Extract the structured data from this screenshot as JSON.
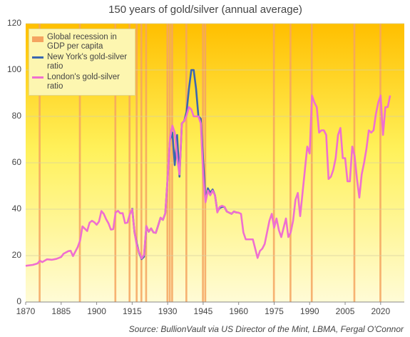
{
  "chart_data": {
    "type": "line",
    "title": "150 years of gold/silver (annual  average)",
    "source": "Source: BullionVault via US Director of the Mint, LBMA, Fergal O'Connor",
    "xlim": [
      1870,
      2030
    ],
    "xticks": [
      1870,
      1885,
      1900,
      1915,
      1930,
      1945,
      1960,
      1975,
      1990,
      2005,
      2020
    ],
    "ylim": [
      0,
      120
    ],
    "yticks": [
      0,
      20,
      40,
      60,
      80,
      100,
      120
    ],
    "grid": true,
    "recession": {
      "name": "Global recession in GDP per capita",
      "color": "#f4a460",
      "x": [
        1876,
        1893,
        1908,
        1914,
        1917,
        1919,
        1921,
        1930,
        1931,
        1932,
        1938,
        1945,
        1946,
        1975,
        1982,
        1991,
        2009,
        2020
      ]
    },
    "series": [
      {
        "name": "New York's gold-silver ratio",
        "color": "#3a66b0",
        "x": [
          1915,
          1916,
          1917,
          1918,
          1919,
          1920,
          1921,
          1922,
          1923,
          1924,
          1925,
          1926,
          1927,
          1928,
          1929,
          1930,
          1931,
          1932,
          1933,
          1934,
          1935,
          1936,
          1937,
          1938,
          1939,
          1940,
          1941,
          1942,
          1943,
          1944,
          1945,
          1946,
          1947,
          1948,
          1949,
          1950,
          1951,
          1952,
          1953,
          1954,
          1955,
          1956,
          1957,
          1958,
          1959,
          1960
        ],
        "values": [
          40.5,
          30,
          25,
          21,
          18.5,
          19.5,
          32.5,
          30.3,
          31.7,
          30,
          29.8,
          33,
          36.3,
          35.4,
          38.2,
          53.6,
          70,
          73,
          59,
          72,
          54,
          77,
          78,
          82,
          92,
          100,
          100,
          92,
          80,
          79,
          61,
          44,
          49,
          47,
          48.5,
          46,
          39,
          40.5,
          41,
          41,
          39,
          38.5,
          38,
          39,
          38.6,
          38.5
        ]
      },
      {
        "name": "London's gold-silver ratio",
        "color": "#ef6fd0",
        "x": [
          1870,
          1873,
          1875,
          1876,
          1877,
          1879,
          1881,
          1883,
          1885,
          1886,
          1888,
          1889,
          1890,
          1892,
          1893,
          1894,
          1895,
          1896,
          1897,
          1898,
          1899,
          1900,
          1901,
          1902,
          1903,
          1904,
          1905,
          1906,
          1907,
          1908,
          1909,
          1910,
          1911,
          1912,
          1913,
          1914,
          1915,
          1916,
          1917,
          1918,
          1919,
          1920,
          1921,
          1922,
          1923,
          1924,
          1925,
          1926,
          1927,
          1928,
          1929,
          1930,
          1931,
          1932,
          1933,
          1934,
          1935,
          1936,
          1937,
          1938,
          1939,
          1940,
          1941,
          1942,
          1943,
          1944,
          1945,
          1946,
          1947,
          1948,
          1949,
          1950,
          1951,
          1952,
          1953,
          1954,
          1955,
          1956,
          1957,
          1958,
          1959,
          1960,
          1961,
          1962,
          1963,
          1964,
          1965,
          1966,
          1967,
          1968,
          1969,
          1970,
          1971,
          1972,
          1973,
          1974,
          1975,
          1976,
          1977,
          1978,
          1979,
          1980,
          1981,
          1982,
          1983,
          1984,
          1985,
          1986,
          1987,
          1988,
          1989,
          1990,
          1991,
          1992,
          1993,
          1994,
          1995,
          1996,
          1997,
          1998,
          1999,
          2000,
          2001,
          2002,
          2003,
          2004,
          2005,
          2006,
          2007,
          2008,
          2009,
          2010,
          2011,
          2012,
          2013,
          2014,
          2015,
          2016,
          2017,
          2018,
          2019,
          2020,
          2021,
          2022,
          2023,
          2024
        ],
        "values": [
          15.6,
          16,
          16.6,
          17.8,
          17.2,
          18.4,
          18.2,
          18.6,
          19.4,
          20.8,
          21.9,
          22.1,
          19.8,
          23.7,
          26.5,
          32.6,
          31.6,
          30.6,
          34.2,
          35,
          34.4,
          33.3,
          34.7,
          39.2,
          38,
          35.7,
          33.9,
          31.2,
          31.4,
          38.6,
          39.3,
          38.2,
          38.3,
          34,
          34.2,
          37.8,
          40,
          30.1,
          24.2,
          21.3,
          18.8,
          20.3,
          32.8,
          30.3,
          31.7,
          30,
          29.8,
          33,
          36.3,
          35.4,
          38.2,
          53.6,
          70.6,
          76,
          73,
          62,
          55,
          77,
          78,
          80.5,
          84,
          83,
          80,
          80,
          80,
          77,
          55,
          43,
          48,
          46,
          48,
          46,
          38.6,
          41,
          41.5,
          41,
          39,
          38.5,
          38,
          39,
          38.6,
          38.5,
          38,
          30,
          27,
          27,
          27,
          27,
          23,
          19,
          22,
          23,
          25,
          30,
          35,
          38,
          32,
          36,
          31,
          28,
          32,
          36,
          28,
          30,
          35,
          44,
          47,
          37,
          47,
          57,
          67,
          64,
          89,
          86,
          84,
          73,
          74,
          74,
          72,
          53,
          54,
          57,
          62,
          72,
          75,
          62,
          62,
          52,
          52,
          67,
          63,
          53,
          45,
          55,
          60,
          66,
          74,
          73,
          74,
          81,
          86,
          89,
          72,
          84,
          84,
          89
        ]
      }
    ]
  }
}
